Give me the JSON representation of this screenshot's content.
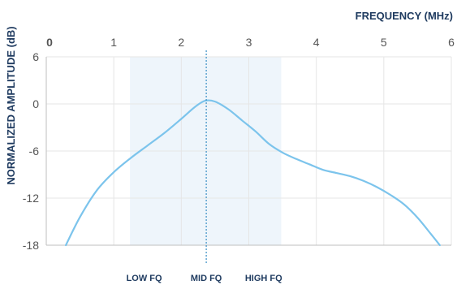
{
  "chart_data": {
    "type": "line",
    "title": "",
    "xlabel": "FREQUENCY (MHz)",
    "ylabel": "NORMALIZED AMPLITUDE (dB)",
    "xlim": [
      0,
      6
    ],
    "ylim": [
      -18,
      6
    ],
    "x_axis_position": "top",
    "x_ticks": [
      0,
      1,
      2,
      3,
      4,
      5,
      6
    ],
    "y_ticks": [
      6,
      0,
      -6,
      -12,
      -18
    ],
    "x_tick_labels": [
      "0",
      "1",
      "2",
      "3",
      "4",
      "5",
      "6"
    ],
    "y_tick_labels": [
      "6",
      "0",
      "-6",
      "-12",
      "-18"
    ],
    "grid": true,
    "band": {
      "x_start": 1.24,
      "x_end": 3.48
    },
    "center_line_x": 2.37,
    "band_labels": [
      {
        "text": "LOW FQ",
        "x": 1.45
      },
      {
        "text": "MID FQ",
        "x": 2.37
      },
      {
        "text": "HIGH FQ",
        "x": 3.22
      }
    ],
    "series": [
      {
        "color": "#7cc4ec",
        "points": [
          [
            0.29,
            -18.0
          ],
          [
            0.5,
            -14.4
          ],
          [
            0.75,
            -11.0
          ],
          [
            1.0,
            -8.7
          ],
          [
            1.25,
            -6.9
          ],
          [
            1.5,
            -5.3
          ],
          [
            1.75,
            -3.7
          ],
          [
            2.0,
            -1.9
          ],
          [
            2.2,
            -0.4
          ],
          [
            2.35,
            0.4
          ],
          [
            2.5,
            0.3
          ],
          [
            2.7,
            -0.7
          ],
          [
            2.9,
            -2.1
          ],
          [
            3.1,
            -3.5
          ],
          [
            3.3,
            -5.1
          ],
          [
            3.5,
            -6.2
          ],
          [
            3.7,
            -7.0
          ],
          [
            3.9,
            -7.7
          ],
          [
            4.1,
            -8.4
          ],
          [
            4.3,
            -8.8
          ],
          [
            4.5,
            -9.2
          ],
          [
            4.7,
            -9.8
          ],
          [
            4.9,
            -10.6
          ],
          [
            5.1,
            -11.6
          ],
          [
            5.3,
            -12.8
          ],
          [
            5.5,
            -14.5
          ],
          [
            5.7,
            -16.6
          ],
          [
            5.83,
            -18.0
          ]
        ]
      }
    ]
  }
}
